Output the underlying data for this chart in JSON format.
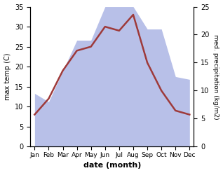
{
  "months": [
    "Jan",
    "Feb",
    "Mar",
    "Apr",
    "May",
    "Jun",
    "Jul",
    "Aug",
    "Sep",
    "Oct",
    "Nov",
    "Dec"
  ],
  "month_x": [
    0,
    1,
    2,
    3,
    4,
    5,
    6,
    7,
    8,
    9,
    10,
    11
  ],
  "temperature": [
    8,
    12,
    19,
    24,
    25,
    30,
    29,
    33,
    21,
    14,
    9,
    8
  ],
  "precipitation_mm": [
    9.5,
    8,
    13.5,
    19,
    19,
    25,
    25,
    25,
    21,
    21,
    12.5,
    12
  ],
  "temp_color": "#9e3a3a",
  "precip_fill_color": "#b8c0e8",
  "temp_ylim": [
    0,
    35
  ],
  "precip_ylim": [
    0,
    25
  ],
  "left_yticks": [
    0,
    5,
    10,
    15,
    20,
    25,
    30,
    35
  ],
  "right_yticks": [
    0,
    5,
    10,
    15,
    20,
    25
  ],
  "ylabel_left": "max temp (C)",
  "ylabel_right": "med. precipitation (kg/m2)",
  "xlabel": "date (month)",
  "bg_color": "#ffffff",
  "line_width": 1.8,
  "temp_scale_factor": 1.4
}
